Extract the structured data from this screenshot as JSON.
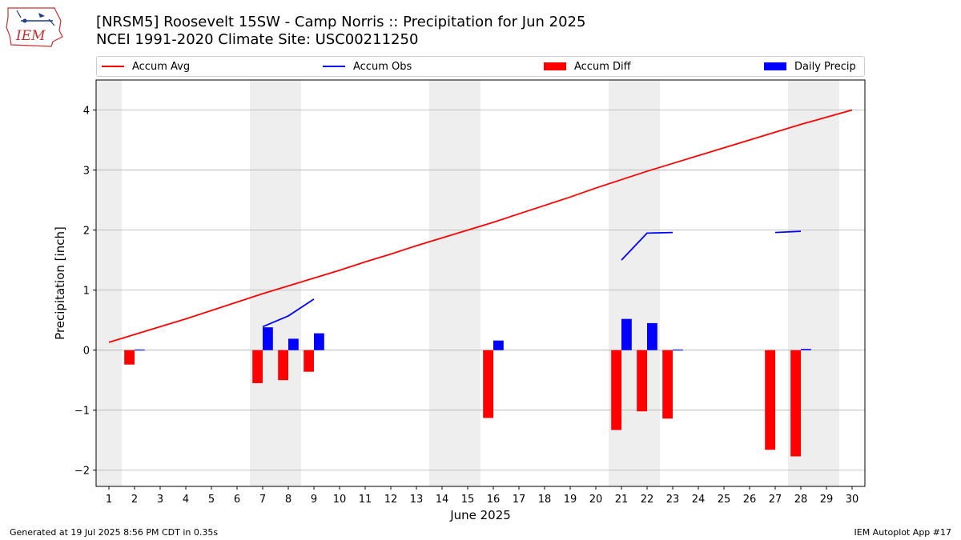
{
  "header": {
    "title_line1": "[NRSM5] Roosevelt 15SW - Camp Norris :: Precipitation for Jun 2025",
    "title_line2": "NCEI 1991-2020 Climate Site: USC00211250",
    "logo_text": "IEM"
  },
  "footer": {
    "generated": "Generated at 19 Jul 2025 8:56 PM CDT in 0.35s",
    "app": "IEM Autoplot App #17"
  },
  "colors": {
    "accum_avg": "#ff0000",
    "accum_obs": "#0000ff",
    "accum_diff": "#ff0000",
    "daily_precip": "#0000ff",
    "weekend_shade": "#eeeeee",
    "grid": "#b0b0b0"
  },
  "chart_data": {
    "type": "bar",
    "xlabel": "June 2025",
    "ylabel": "Precipitation [inch]",
    "xlim": [
      0.5,
      30.5
    ],
    "ylim": [
      -2.27,
      4.5
    ],
    "yticks": [
      -2,
      -1,
      0,
      1,
      2,
      3,
      4
    ],
    "ytick_labels": [
      "−2",
      "−1",
      "0",
      "1",
      "2",
      "3",
      "4"
    ],
    "x": [
      1,
      2,
      3,
      4,
      5,
      6,
      7,
      8,
      9,
      10,
      11,
      12,
      13,
      14,
      15,
      16,
      17,
      18,
      19,
      20,
      21,
      22,
      23,
      24,
      25,
      26,
      27,
      28,
      29,
      30
    ],
    "grid": "horizontal",
    "legend_position": "top",
    "weekend_shading": [
      [
        0.5,
        1.5
      ],
      [
        6.5,
        8.5
      ],
      [
        13.5,
        15.5
      ],
      [
        20.5,
        22.5
      ],
      [
        27.5,
        29.5
      ]
    ],
    "series": [
      {
        "name": "Accum Avg",
        "type": "line",
        "values": [
          0.13,
          0.26,
          0.39,
          0.52,
          0.66,
          0.8,
          0.94,
          1.07,
          1.2,
          1.33,
          1.47,
          1.6,
          1.74,
          1.87,
          2.0,
          2.13,
          2.27,
          2.41,
          2.55,
          2.7,
          2.84,
          2.98,
          3.11,
          3.24,
          3.37,
          3.5,
          3.63,
          3.76,
          3.88,
          4.0
        ]
      },
      {
        "name": "Accum Obs",
        "type": "line",
        "values": [
          null,
          null,
          null,
          null,
          null,
          null,
          0.39,
          0.57,
          0.85,
          null,
          null,
          null,
          null,
          null,
          null,
          null,
          null,
          null,
          null,
          null,
          1.5,
          1.95,
          1.96,
          null,
          null,
          null,
          1.96,
          1.98,
          null,
          null
        ]
      },
      {
        "name": "Accum Diff",
        "type": "bar",
        "values": [
          null,
          -0.24,
          null,
          null,
          null,
          null,
          -0.55,
          -0.5,
          -0.36,
          null,
          null,
          null,
          null,
          null,
          null,
          -1.13,
          null,
          null,
          null,
          null,
          -1.33,
          -1.02,
          -1.14,
          null,
          null,
          null,
          -1.66,
          -1.77,
          null,
          null
        ]
      },
      {
        "name": "Daily Precip",
        "type": "bar",
        "values": [
          null,
          0.01,
          null,
          null,
          null,
          null,
          0.38,
          0.19,
          0.28,
          null,
          null,
          null,
          null,
          null,
          null,
          0.16,
          null,
          null,
          null,
          null,
          0.52,
          0.45,
          0.01,
          null,
          null,
          null,
          null,
          0.02,
          null,
          null
        ]
      }
    ]
  }
}
